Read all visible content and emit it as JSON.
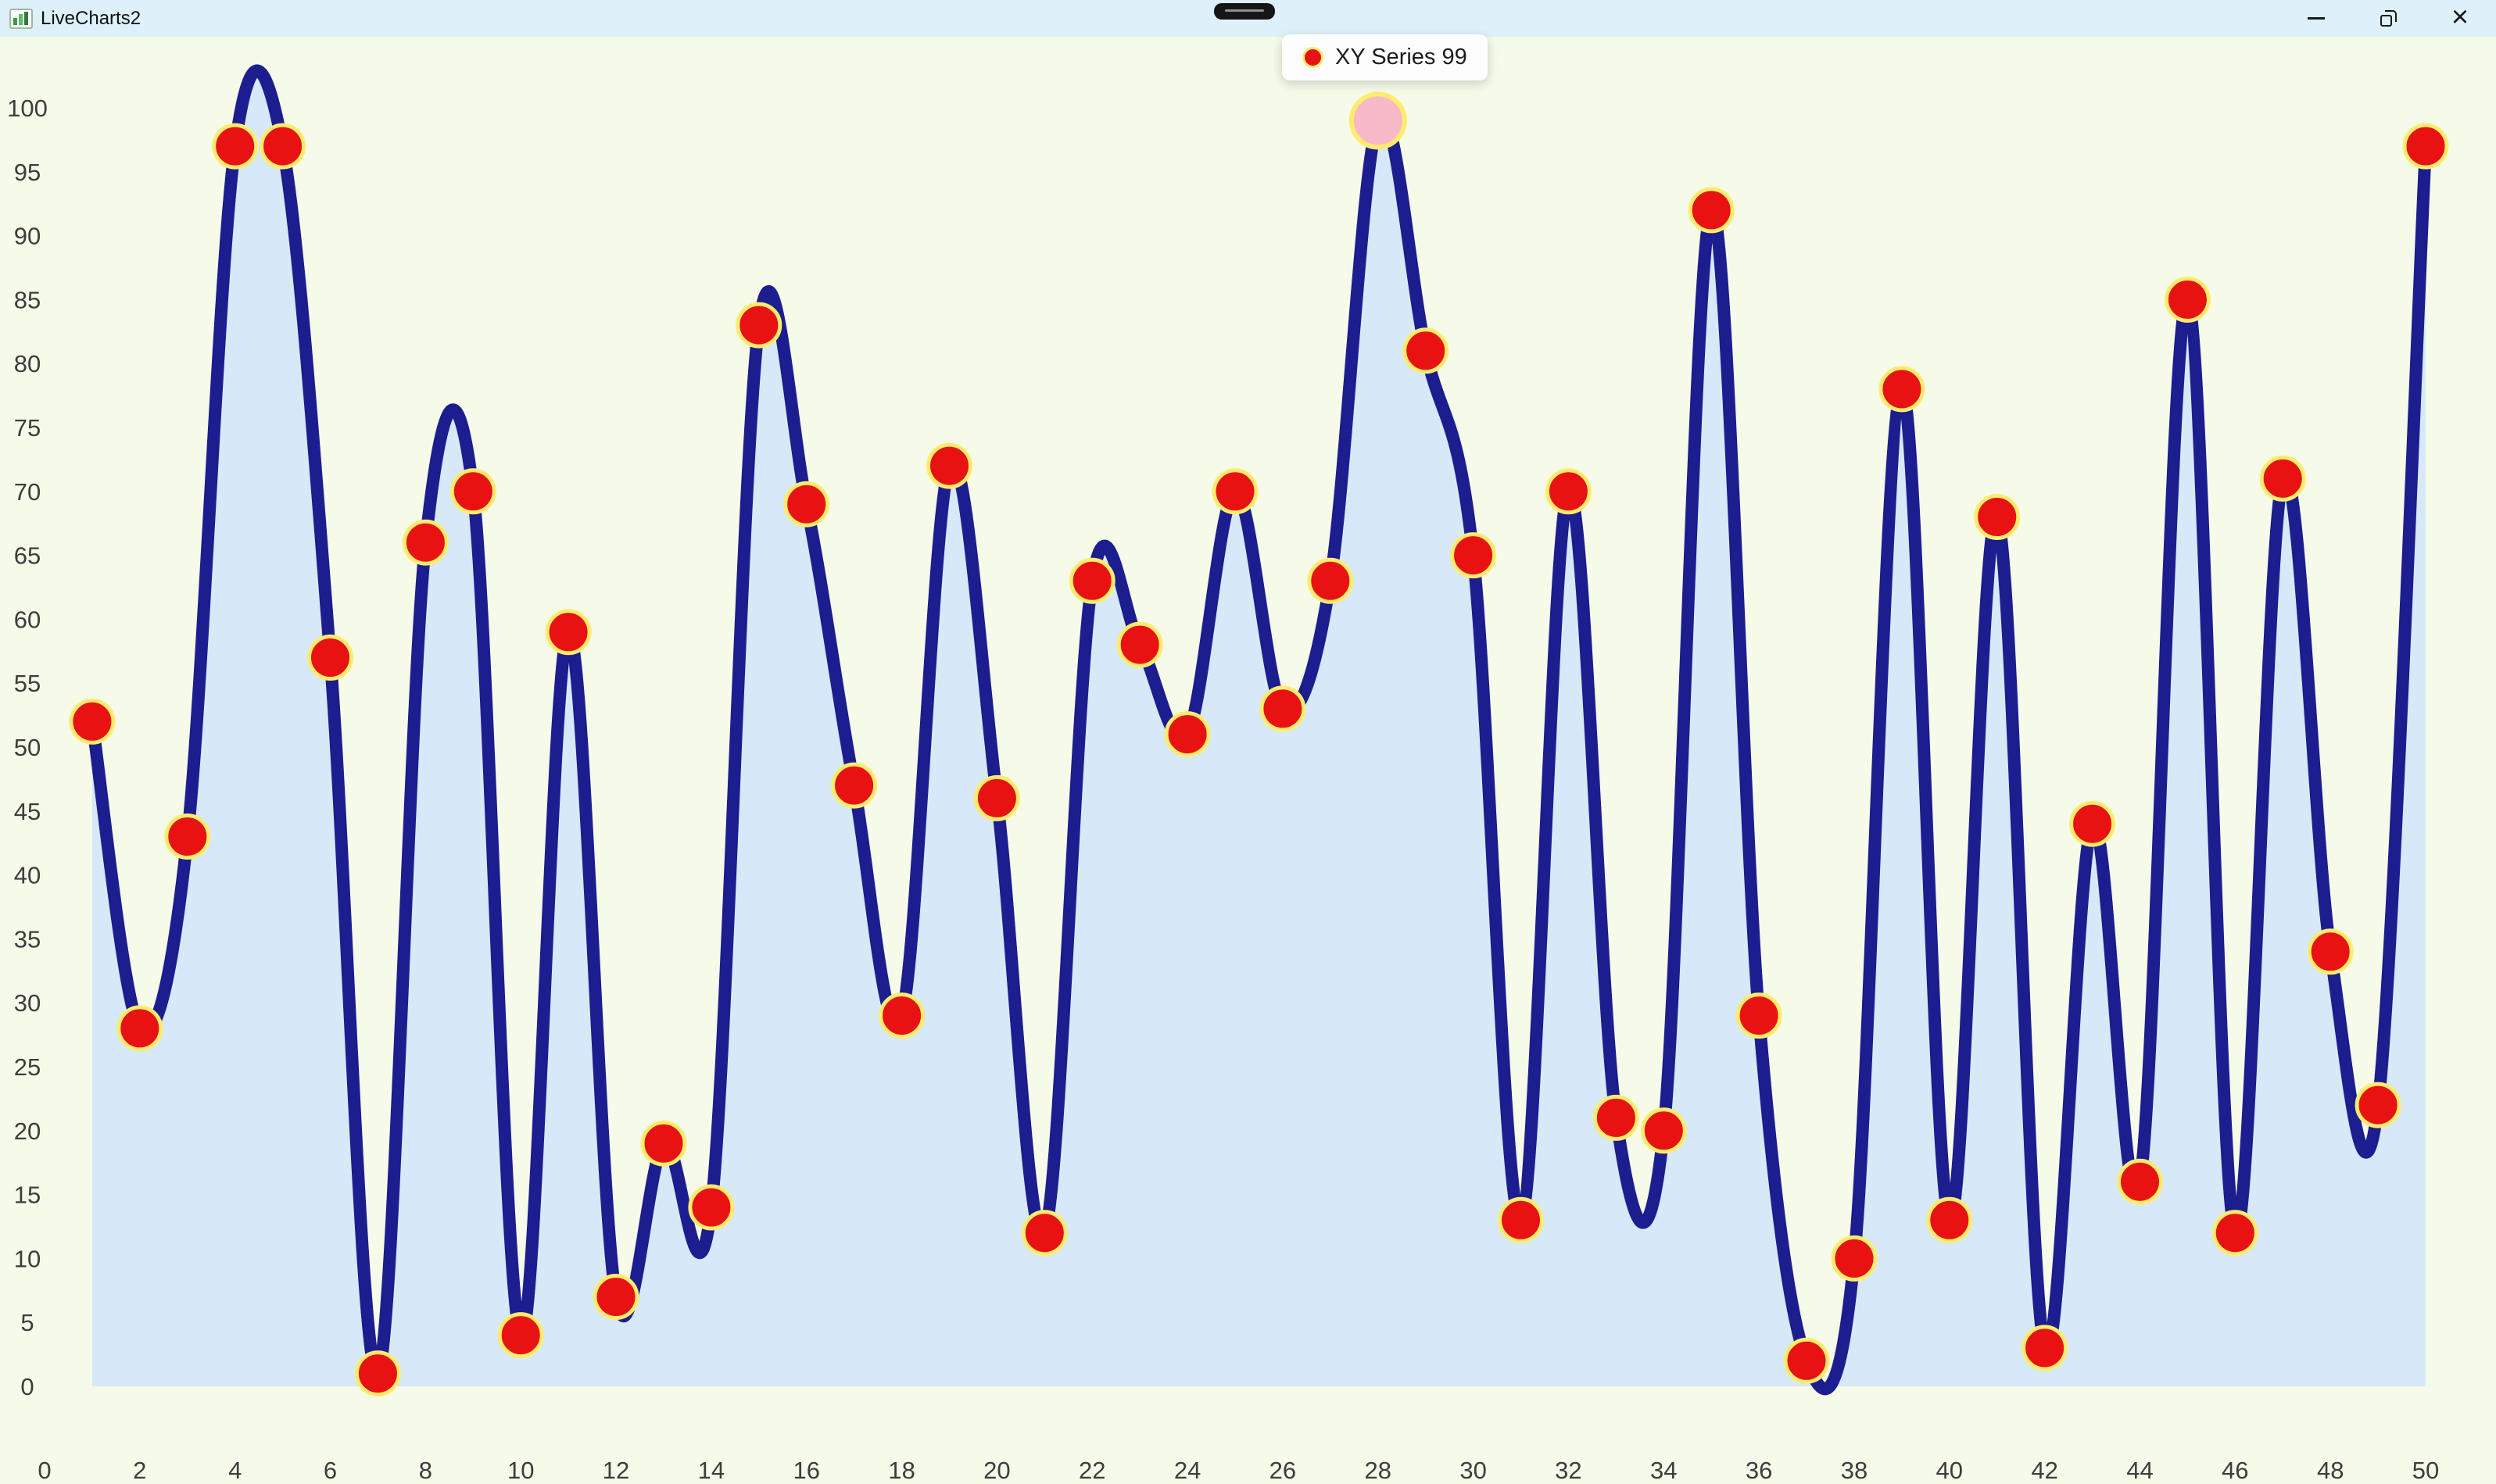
{
  "window": {
    "title": "LiveCharts2",
    "close_label": "×"
  },
  "tooltip": {
    "series_label": "XY Series 99",
    "marker_color": "#e81212"
  },
  "colors": {
    "window_background": "#f5fae9",
    "titlebar_background": "#def0f9",
    "line": "#1c1d8f",
    "area": "#d7e8f8",
    "point_fill": "#e81212",
    "point_stroke": "#ffec6e",
    "highlight_fill": "#f7b9c8",
    "tick_label": "#3d3d3d"
  },
  "chart_data": {
    "type": "line",
    "series_name": "XY Series",
    "x": [
      1,
      2,
      3,
      4,
      5,
      6,
      7,
      8,
      9,
      10,
      11,
      12,
      13,
      14,
      15,
      16,
      17,
      18,
      19,
      20,
      21,
      22,
      23,
      24,
      25,
      26,
      27,
      28,
      29,
      30,
      31,
      32,
      33,
      34,
      35,
      36,
      37,
      38,
      39,
      40,
      41,
      42,
      43,
      44,
      45,
      46,
      47,
      48,
      49,
      50
    ],
    "values": [
      52,
      28,
      43,
      97,
      97,
      57,
      1,
      66,
      70,
      4,
      59,
      7,
      19,
      14,
      83,
      69,
      47,
      29,
      72,
      46,
      12,
      63,
      58,
      51,
      70,
      53,
      63,
      99,
      81,
      65,
      13,
      70,
      21,
      20,
      92,
      29,
      2,
      10,
      78,
      13,
      68,
      3,
      44,
      16,
      85,
      12,
      71,
      34,
      22,
      97
    ],
    "highlight_index": 27,
    "highlight_value": 99,
    "xlim": [
      0,
      50
    ],
    "ylim": [
      0,
      100
    ],
    "x_ticks": [
      0,
      2,
      4,
      6,
      8,
      10,
      12,
      14,
      16,
      18,
      20,
      22,
      24,
      26,
      28,
      30,
      32,
      34,
      36,
      38,
      40,
      42,
      44,
      46,
      48,
      50
    ],
    "y_ticks": [
      0,
      5,
      10,
      15,
      20,
      25,
      30,
      35,
      40,
      45,
      50,
      55,
      60,
      65,
      70,
      75,
      80,
      85,
      90,
      95,
      100
    ],
    "grid": false,
    "legend_position": "none",
    "smooth": true,
    "area_filled": true
  }
}
